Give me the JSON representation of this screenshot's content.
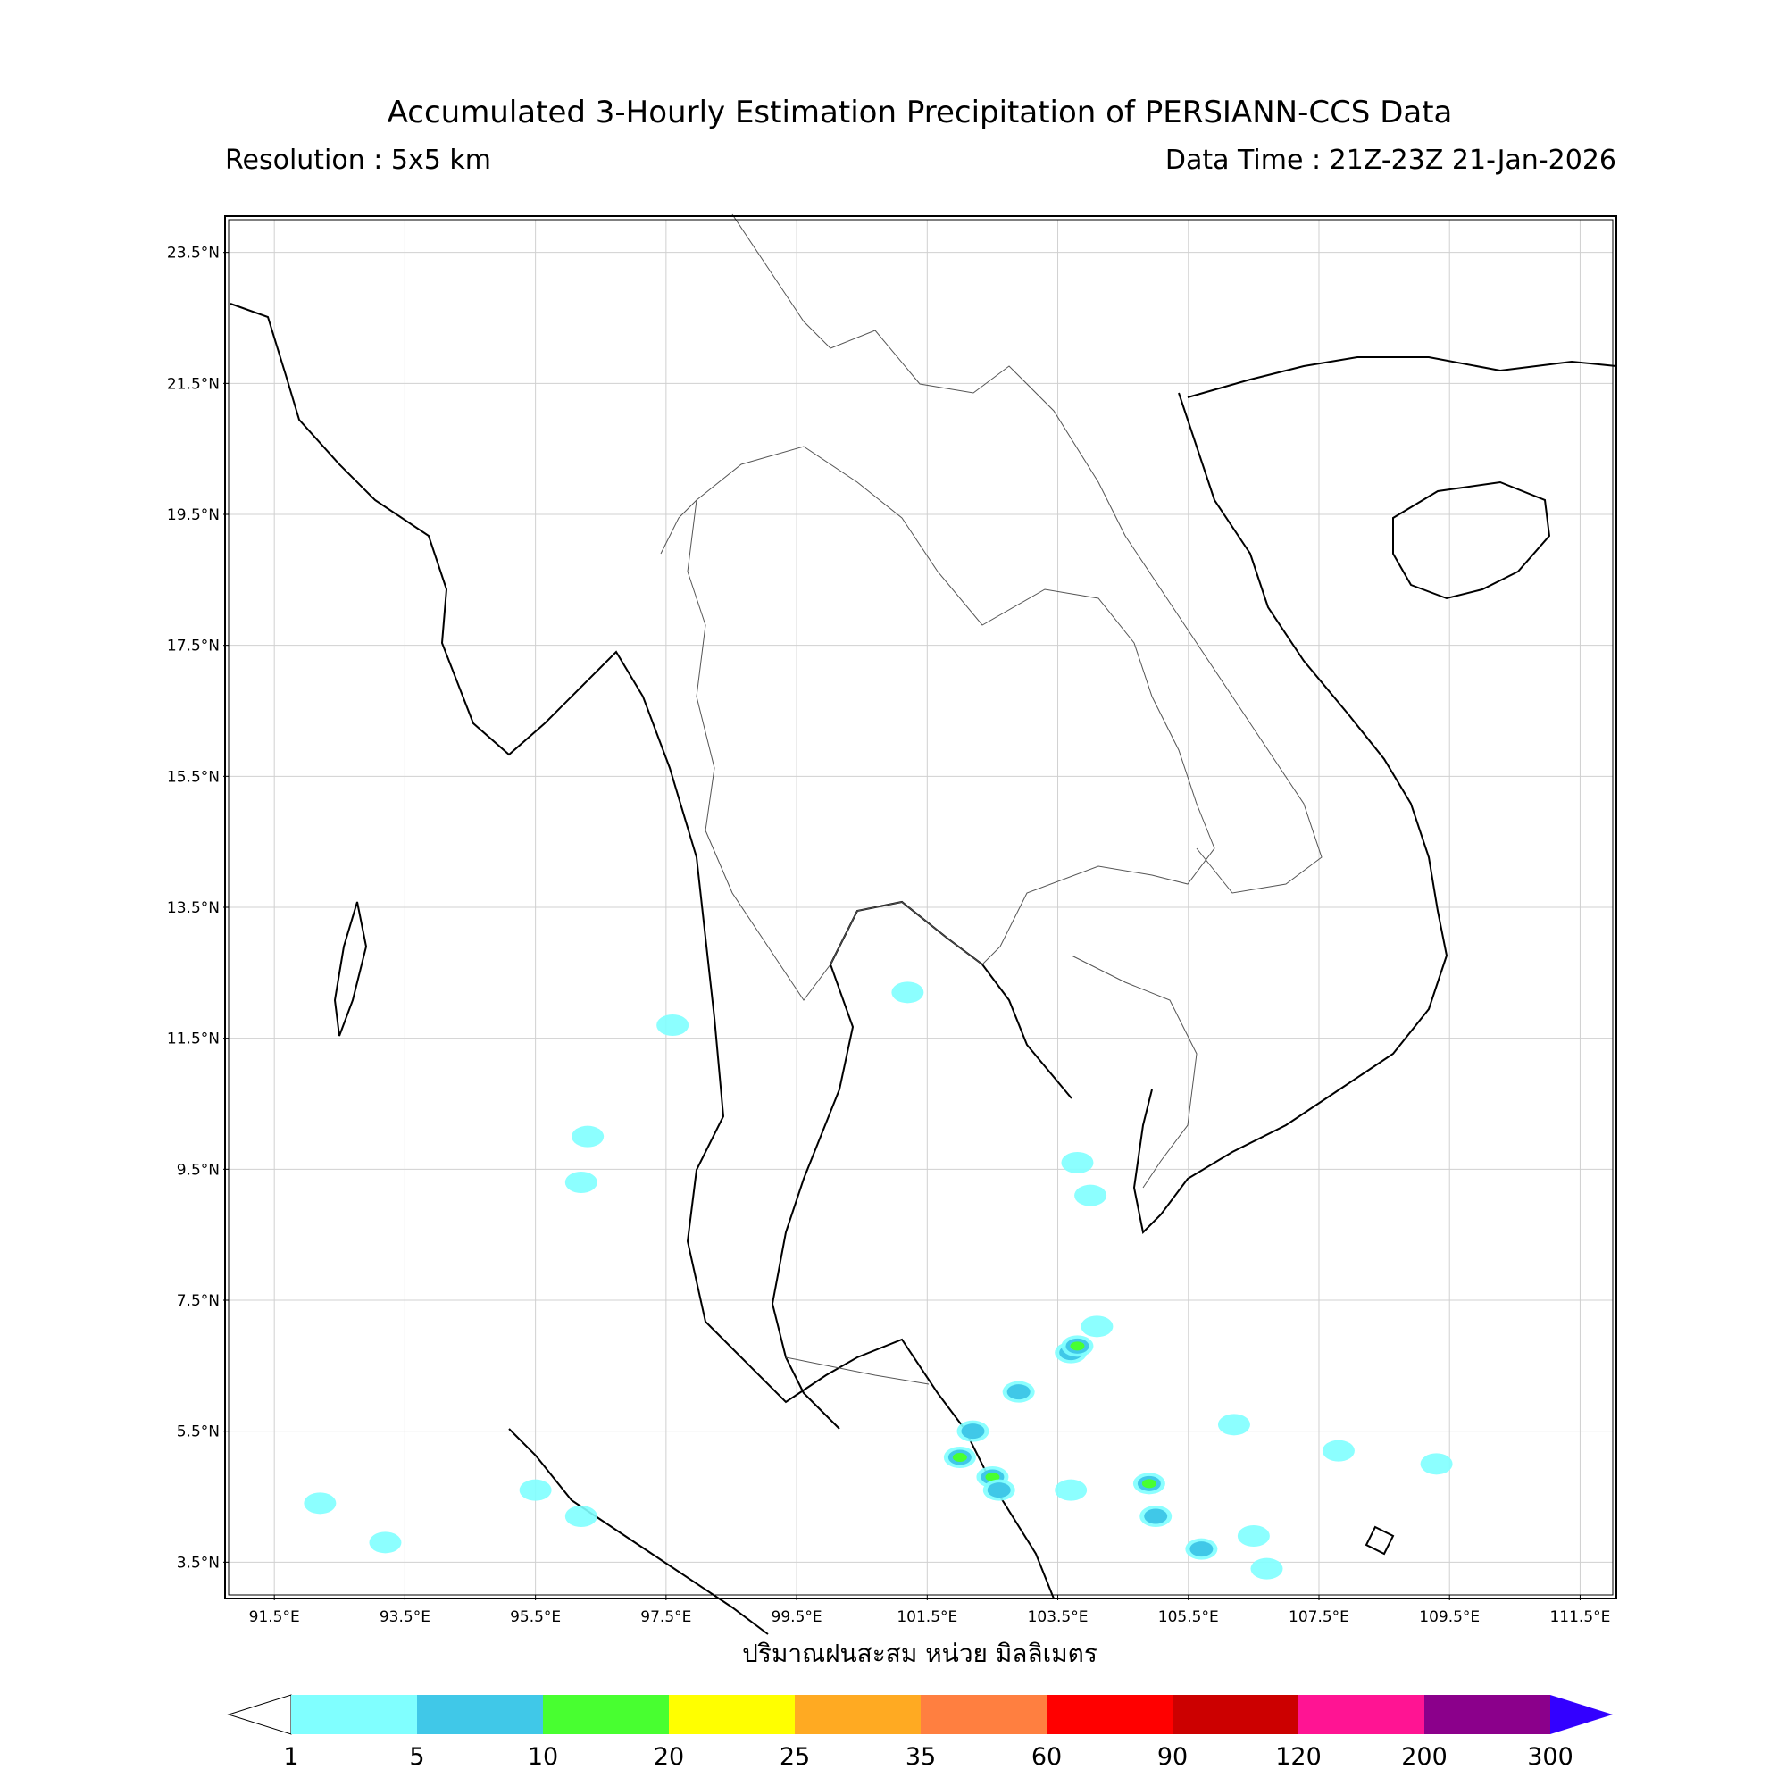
{
  "header": {
    "title": "Accumulated 3-Hourly Estimation Precipitation of PERSIANN-CCS Data",
    "resolution": "Resolution : 5x5 km",
    "data_time": "Data Time : 21Z-23Z 21-Jan-2026"
  },
  "map": {
    "lon_range": [
      90.8,
      112.0
    ],
    "lat_range": [
      3.0,
      24.0
    ],
    "lon_ticks": [
      "91.5°E",
      "93.5°E",
      "95.5°E",
      "97.5°E",
      "99.5°E",
      "101.5°E",
      "103.5°E",
      "105.5°E",
      "107.5°E",
      "109.5°E",
      "111.5°E"
    ],
    "lat_ticks": [
      "23.5°N",
      "21.5°N",
      "19.5°N",
      "17.5°N",
      "15.5°N",
      "13.5°N",
      "11.5°N",
      "9.5°N",
      "7.5°N",
      "5.5°N",
      "3.5°N"
    ],
    "grid": true,
    "x_axis_label": "ปริมาณฝนสะสม หน่วย มิลลิเมตร"
  },
  "colorbar": {
    "levels": [
      "1",
      "5",
      "10",
      "20",
      "25",
      "35",
      "60",
      "90",
      "120",
      "200",
      "300"
    ],
    "colors": [
      "#80ffff",
      "#40c8e8",
      "#48ff30",
      "#ffff00",
      "#ffaa22",
      "#ff7f40",
      "#ff0000",
      "#cc0000",
      "#ff1493",
      "#8b008b"
    ],
    "under_color": "#ffffff",
    "over_color": "#3300ff"
  },
  "rain_cells": [
    {
      "lon": 101.2,
      "lat": 12.2,
      "level": 1
    },
    {
      "lon": 97.6,
      "lat": 11.7,
      "level": 1
    },
    {
      "lon": 96.3,
      "lat": 10.0,
      "level": 1
    },
    {
      "lon": 96.2,
      "lat": 9.3,
      "level": 1
    },
    {
      "lon": 103.8,
      "lat": 9.6,
      "level": 1
    },
    {
      "lon": 104.0,
      "lat": 9.1,
      "level": 1
    },
    {
      "lon": 103.7,
      "lat": 6.7,
      "level": 2
    },
    {
      "lon": 103.8,
      "lat": 6.8,
      "level": 3
    },
    {
      "lon": 102.9,
      "lat": 6.1,
      "level": 2
    },
    {
      "lon": 102.2,
      "lat": 5.5,
      "level": 2
    },
    {
      "lon": 102.0,
      "lat": 5.1,
      "level": 3
    },
    {
      "lon": 102.5,
      "lat": 4.8,
      "level": 3
    },
    {
      "lon": 102.6,
      "lat": 4.6,
      "level": 2
    },
    {
      "lon": 103.7,
      "lat": 4.6,
      "level": 1
    },
    {
      "lon": 104.9,
      "lat": 4.7,
      "level": 3
    },
    {
      "lon": 105.0,
      "lat": 4.2,
      "level": 2
    },
    {
      "lon": 106.5,
      "lat": 3.9,
      "level": 1
    },
    {
      "lon": 106.7,
      "lat": 3.4,
      "level": 1
    },
    {
      "lon": 105.7,
      "lat": 3.7,
      "level": 2
    },
    {
      "lon": 107.8,
      "lat": 5.2,
      "level": 1
    },
    {
      "lon": 109.3,
      "lat": 5.0,
      "level": 1
    },
    {
      "lon": 95.5,
      "lat": 4.6,
      "level": 1
    },
    {
      "lon": 96.2,
      "lat": 4.2,
      "level": 1
    },
    {
      "lon": 93.2,
      "lat": 3.8,
      "level": 1
    },
    {
      "lon": 92.2,
      "lat": 4.4,
      "level": 1
    },
    {
      "lon": 104.1,
      "lat": 7.1,
      "level": 1
    },
    {
      "lon": 106.2,
      "lat": 5.6,
      "level": 1
    }
  ]
}
